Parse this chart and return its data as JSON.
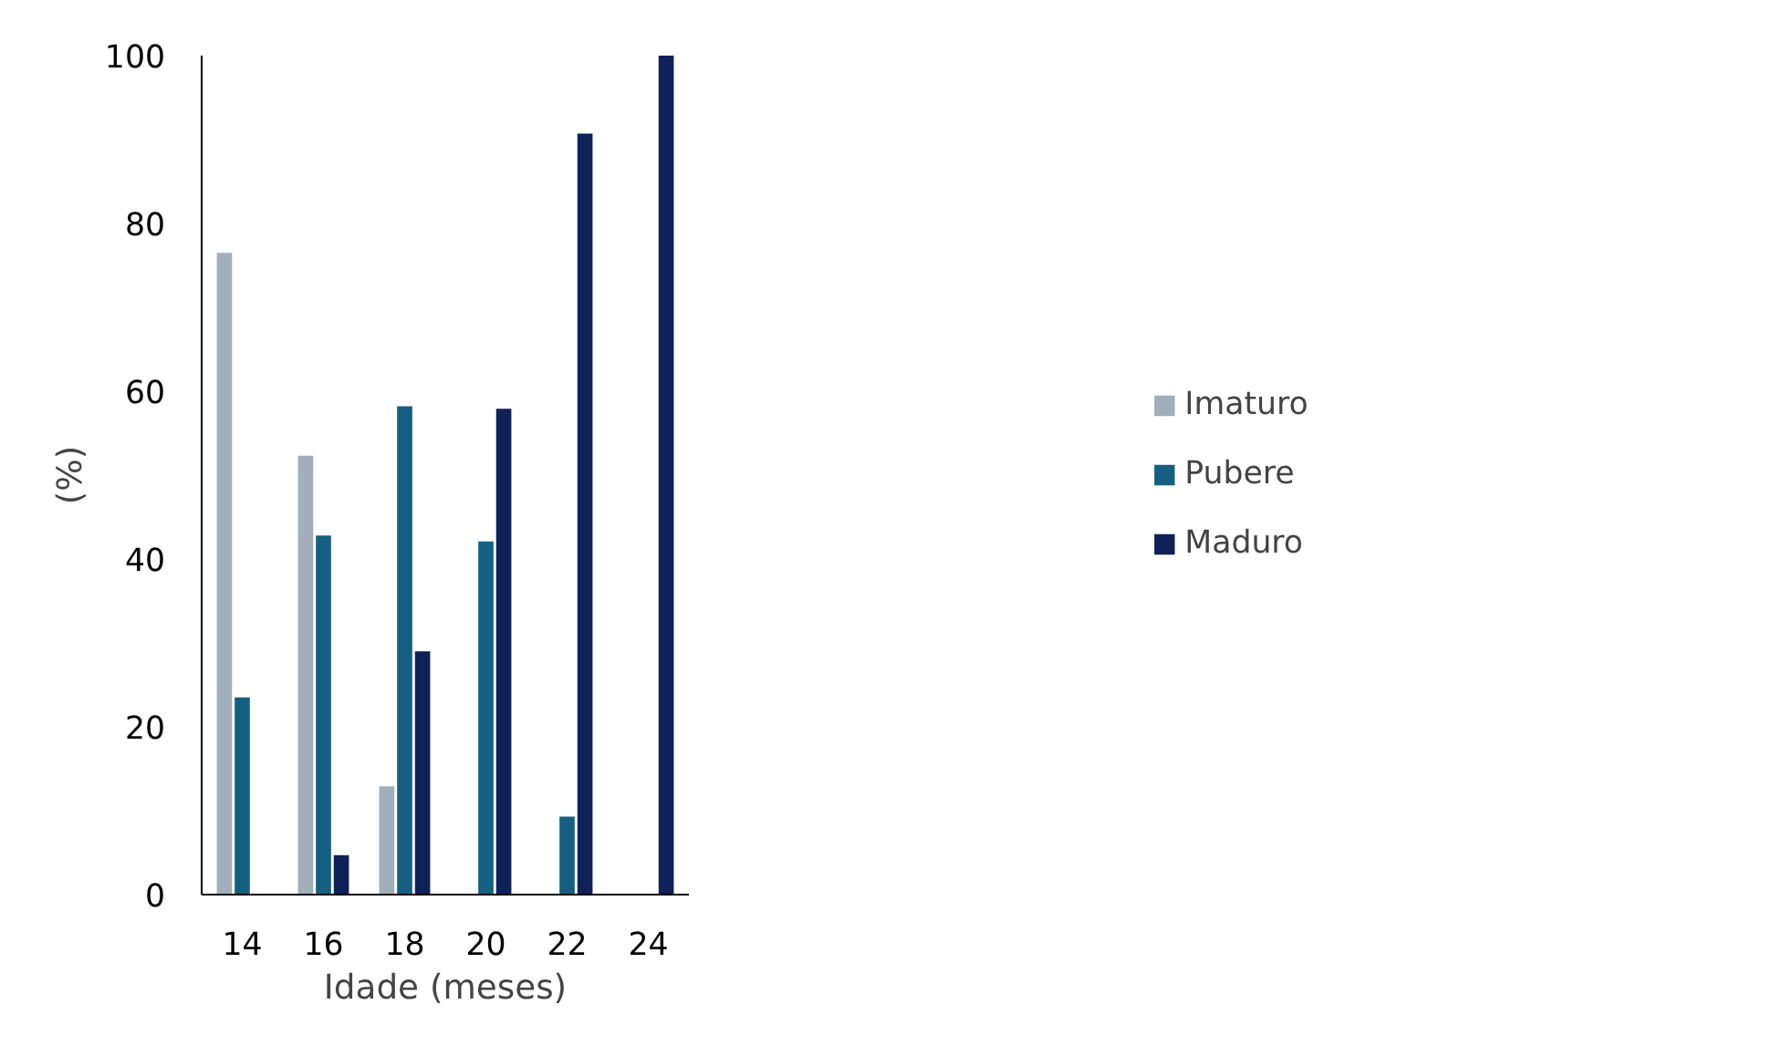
{
  "chart_data": {
    "type": "bar",
    "xlabel": "Idade (meses)",
    "ylabel": "(%)",
    "categories": [
      "14",
      "16",
      "18",
      "20",
      "22",
      "24"
    ],
    "series": [
      {
        "name": "Imaturo",
        "color": "#a2aeb9",
        "values": [
          76.5,
          52.3,
          12.9,
          null,
          null,
          null
        ]
      },
      {
        "name": "Pubere",
        "color": "#156082",
        "values": [
          23.5,
          42.8,
          58.2,
          42.1,
          9.3,
          null
        ]
      },
      {
        "name": "Maduro",
        "color": "#0e2158",
        "values": [
          null,
          4.7,
          29.0,
          57.9,
          90.7,
          100
        ]
      }
    ],
    "ylim": [
      0,
      100
    ],
    "yticks": [
      0,
      20,
      40,
      60,
      80,
      100
    ],
    "grid": false,
    "legend": "right"
  }
}
